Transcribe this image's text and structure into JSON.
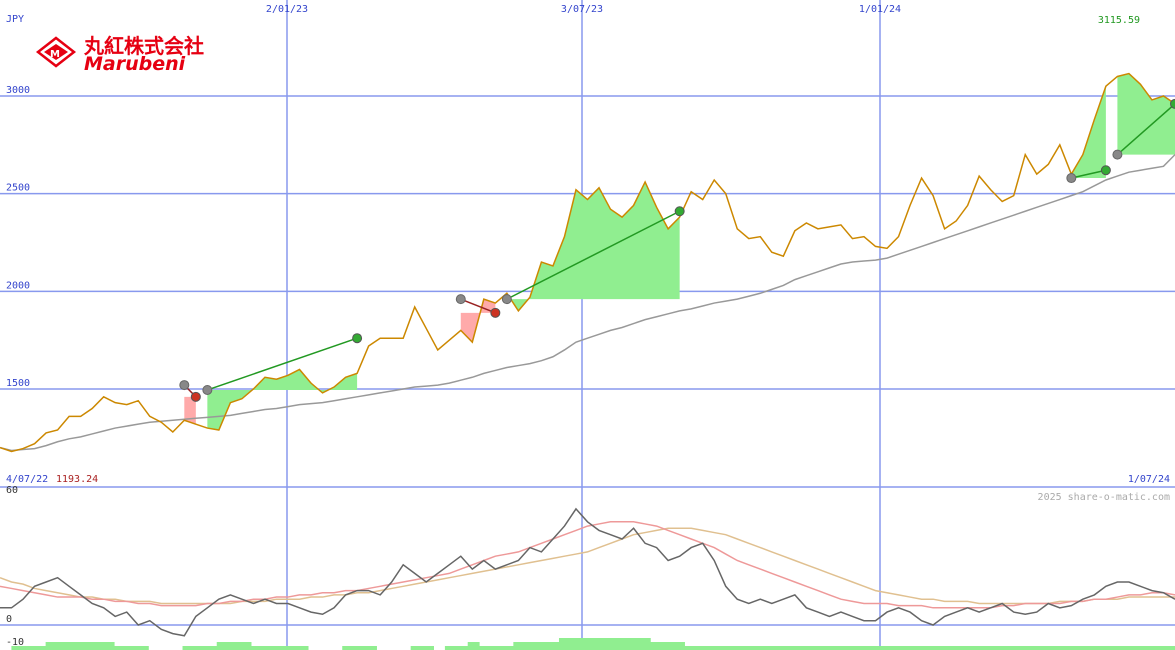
{
  "brand": {
    "name_jp": "丸紅株式会社",
    "name_en": "Marubeni"
  },
  "watermark": "2025 share-o-matic.com",
  "colors": {
    "price": "#cc8800",
    "ma_price": "#999999",
    "grid": "#8899ee",
    "gain_fill": "#90ee90",
    "loss_fill": "#ffaaaa",
    "gain_line": "#229922",
    "loss_line": "#992222",
    "osc": "#666666",
    "osc_fast": "#ee9999",
    "osc_slow": "#e0c090",
    "brand": "#e60012"
  },
  "chart_data": [
    {
      "type": "line",
      "title": "",
      "currency_label": "JPY",
      "x_date_labels": [
        "2/01/23",
        "3/07/23",
        "1/01/24"
      ],
      "start_label": "4/07/22",
      "end_label": "1/07/24",
      "y_ticks": [
        1500,
        2000,
        2500,
        3000
      ],
      "ylim": [
        1000,
        3250
      ],
      "high_label": "3115.59",
      "low_label": "1193.24",
      "series": [
        {
          "role": "price",
          "values": [
            1200,
            1180,
            1195,
            1220,
            1275,
            1290,
            1360,
            1360,
            1400,
            1460,
            1430,
            1420,
            1440,
            1360,
            1330,
            1280,
            1340,
            1320,
            1300,
            1290,
            1430,
            1450,
            1500,
            1560,
            1550,
            1570,
            1600,
            1530,
            1480,
            1510,
            1560,
            1580,
            1720,
            1760,
            1760,
            1760,
            1920,
            1810,
            1700,
            1750,
            1800,
            1740,
            1960,
            1940,
            1990,
            1900,
            1970,
            2150,
            2130,
            2280,
            2520,
            2470,
            2530,
            2420,
            2380,
            2440,
            2560,
            2430,
            2320,
            2380,
            2510,
            2470,
            2570,
            2500,
            2320,
            2270,
            2280,
            2200,
            2180,
            2310,
            2350,
            2320,
            2330,
            2340,
            2270,
            2280,
            2230,
            2220,
            2280,
            2440,
            2580,
            2490,
            2320,
            2360,
            2440,
            2590,
            2520,
            2460,
            2490,
            2700,
            2600,
            2650,
            2750,
            2600,
            2700,
            2880,
            3050,
            3100,
            3115,
            3060,
            2980,
            3000,
            2960
          ]
        },
        {
          "role": "moving-average",
          "values": [
            1200,
            1185,
            1190,
            1195,
            1210,
            1230,
            1245,
            1255,
            1270,
            1285,
            1300,
            1310,
            1320,
            1330,
            1335,
            1340,
            1345,
            1350,
            1355,
            1360,
            1365,
            1375,
            1385,
            1395,
            1400,
            1410,
            1420,
            1425,
            1430,
            1440,
            1450,
            1460,
            1470,
            1480,
            1490,
            1500,
            1510,
            1515,
            1520,
            1530,
            1545,
            1560,
            1580,
            1595,
            1610,
            1620,
            1630,
            1645,
            1665,
            1700,
            1740,
            1760,
            1780,
            1800,
            1815,
            1835,
            1855,
            1870,
            1885,
            1900,
            1910,
            1925,
            1940,
            1950,
            1960,
            1975,
            1990,
            2010,
            2030,
            2060,
            2080,
            2100,
            2120,
            2140,
            2150,
            2155,
            2160,
            2170,
            2190,
            2210,
            2230,
            2250,
            2270,
            2290,
            2310,
            2330,
            2350,
            2370,
            2390,
            2410,
            2430,
            2450,
            2470,
            2490,
            2510,
            2540,
            2570,
            2590,
            2610,
            2620,
            2630,
            2640,
            2700
          ]
        }
      ],
      "gain_trades": [
        {
          "entry_index": 18,
          "entry_value": 1495,
          "exit_index": 31,
          "exit_value": 1760
        },
        {
          "entry_index": 44,
          "entry_value": 1960,
          "exit_index": 59,
          "exit_value": 2410
        },
        {
          "entry_index": 93,
          "entry_value": 2580,
          "exit_index": 96,
          "exit_value": 2620
        },
        {
          "entry_index": 97,
          "entry_value": 2700,
          "exit_index": 102,
          "exit_value": 2960
        }
      ],
      "loss_trades": [
        {
          "entry_index": 16,
          "entry_value": 1520,
          "exit_index": 17,
          "exit_value": 1460
        },
        {
          "entry_index": 40,
          "entry_value": 1960,
          "exit_index": 43,
          "exit_value": 1890
        }
      ]
    },
    {
      "type": "line",
      "title": "",
      "y_ticks": [
        60,
        0,
        -10
      ],
      "ylim": [
        -10,
        63
      ],
      "series": [
        {
          "role": "oscillator",
          "values": [
            8,
            8,
            12,
            18,
            20,
            22,
            18,
            14,
            10,
            8,
            4,
            6,
            0,
            2,
            -2,
            -4,
            -5,
            4,
            8,
            12,
            14,
            12,
            10,
            12,
            10,
            10,
            8,
            6,
            5,
            8,
            14,
            16,
            16,
            14,
            20,
            28,
            24,
            20,
            24,
            28,
            32,
            26,
            30,
            26,
            28,
            30,
            36,
            34,
            40,
            46,
            54,
            48,
            44,
            42,
            40,
            45,
            38,
            36,
            30,
            32,
            36,
            38,
            30,
            18,
            12,
            10,
            12,
            10,
            12,
            14,
            8,
            6,
            4,
            6,
            4,
            2,
            2,
            6,
            8,
            6,
            2,
            0,
            4,
            6,
            8,
            6,
            8,
            10,
            6,
            5,
            6,
            10,
            8,
            9,
            12,
            14,
            18,
            20,
            20,
            18,
            16,
            15,
            12
          ]
        },
        {
          "role": "oscillator-average",
          "values": [
            18,
            17,
            16,
            15,
            14,
            13,
            13,
            13,
            12,
            12,
            11,
            11,
            10,
            10,
            9,
            9,
            9,
            9,
            10,
            10,
            11,
            11,
            12,
            12,
            13,
            13,
            14,
            14,
            15,
            15,
            16,
            16,
            17,
            18,
            19,
            20,
            21,
            22,
            23,
            24,
            26,
            28,
            30,
            32,
            33,
            34,
            36,
            38,
            40,
            42,
            44,
            46,
            47,
            48,
            48,
            48,
            47,
            46,
            44,
            42,
            40,
            38,
            36,
            33,
            30,
            28,
            26,
            24,
            22,
            20,
            18,
            16,
            14,
            12,
            11,
            10,
            10,
            10,
            9,
            9,
            9,
            8,
            8,
            8,
            8,
            8,
            8,
            9,
            9,
            10,
            10,
            10,
            10,
            11,
            11,
            12,
            12,
            13,
            14,
            14,
            15,
            15,
            14
          ]
        },
        {
          "role": "oscillator-slow",
          "values": [
            22,
            20,
            19,
            17,
            16,
            15,
            14,
            13,
            13,
            12,
            12,
            11,
            11,
            11,
            10,
            10,
            10,
            10,
            10,
            10,
            10,
            11,
            11,
            11,
            12,
            12,
            12,
            13,
            13,
            14,
            14,
            15,
            15,
            16,
            17,
            18,
            19,
            20,
            21,
            22,
            23,
            24,
            25,
            26,
            27,
            28,
            29,
            30,
            31,
            32,
            33,
            34,
            36,
            38,
            40,
            42,
            43,
            44,
            45,
            45,
            45,
            44,
            43,
            42,
            40,
            38,
            36,
            34,
            32,
            30,
            28,
            26,
            24,
            22,
            20,
            18,
            16,
            15,
            14,
            13,
            12,
            12,
            11,
            11,
            11,
            10,
            10,
            10,
            10,
            10,
            10,
            10,
            11,
            11,
            11,
            12,
            12,
            12,
            13,
            13,
            13,
            13,
            13
          ]
        }
      ],
      "volume_bars": [
        0,
        1,
        1,
        1,
        2,
        2,
        2,
        2,
        2,
        2,
        1,
        1,
        1,
        0,
        0,
        0,
        1,
        1,
        1,
        2,
        2,
        2,
        1,
        1,
        1,
        1,
        1,
        0,
        0,
        0,
        1,
        1,
        1,
        0,
        0,
        0,
        1,
        1,
        0,
        1,
        1,
        2,
        1,
        1,
        1,
        2,
        2,
        2,
        2,
        3,
        3,
        3,
        3,
        3,
        3,
        3,
        3,
        2,
        2,
        2,
        1,
        1,
        1,
        1,
        1,
        1,
        1,
        1,
        1,
        1,
        1,
        1,
        1,
        1,
        1,
        1,
        1,
        1,
        1,
        1,
        1,
        1,
        1,
        1,
        1,
        1,
        1,
        1,
        1,
        1,
        1,
        1,
        1,
        1,
        1,
        1,
        1,
        1,
        1,
        1,
        1,
        1,
        1
      ]
    }
  ]
}
